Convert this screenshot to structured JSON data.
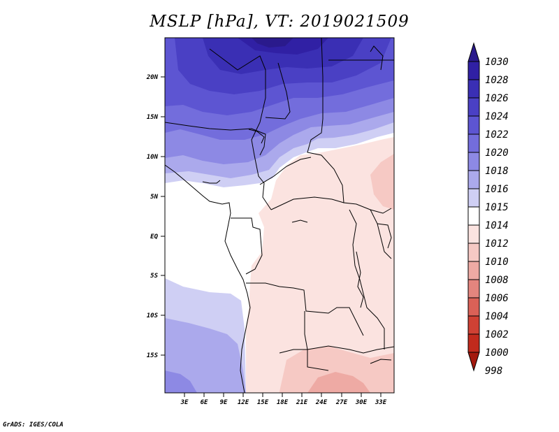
{
  "title": "MSLP [hPa], VT: 2019021509",
  "credit": "GrADS: IGES/COLA",
  "map": {
    "lat_ticks": [
      "20N",
      "15N",
      "10N",
      "5N",
      "EQ",
      "5S",
      "10S",
      "15S"
    ],
    "lon_ticks": [
      "3E",
      "6E",
      "9E",
      "12E",
      "15E",
      "18E",
      "21E",
      "24E",
      "27E",
      "30E",
      "33E"
    ]
  },
  "colorbar": {
    "levels": [
      "1030",
      "1028",
      "1026",
      "1024",
      "1022",
      "1020",
      "1018",
      "1016",
      "1015",
      "1014",
      "1012",
      "1010",
      "1008",
      "1006",
      "1004",
      "1002",
      "1000",
      "998"
    ],
    "colors": [
      "#2a1a8c",
      "#3020a4",
      "#3a2fb4",
      "#4a40c4",
      "#5d55d2",
      "#736ddc",
      "#8d89e4",
      "#aba9ec",
      "#cfcff4",
      "#ffffff",
      "#fbe3e0",
      "#f6c9c4",
      "#eeaaa4",
      "#e4857e",
      "#da6157",
      "#cf4134",
      "#c12a1d",
      "#a3190e"
    ]
  }
}
